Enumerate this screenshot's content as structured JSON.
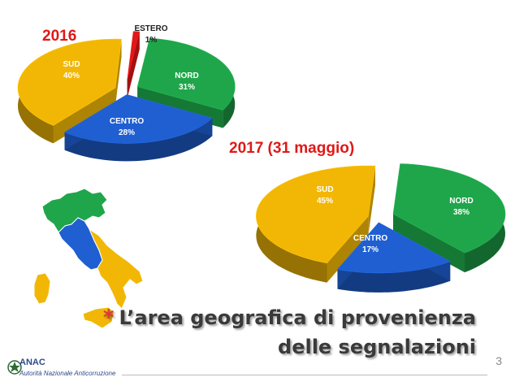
{
  "chart_data": [
    {
      "type": "pie",
      "title": "2016",
      "categories": [
        "SUD",
        "ESTERO",
        "NORD",
        "CENTRO"
      ],
      "values": [
        40,
        1,
        31,
        28
      ],
      "labels": [
        "40%",
        "1%",
        "31%",
        "28%"
      ]
    },
    {
      "type": "pie",
      "title": "2017 (31 maggio)",
      "categories": [
        "SUD",
        "NORD",
        "CENTRO"
      ],
      "values": [
        45,
        38,
        17
      ],
      "labels": [
        "45%",
        "38%",
        "17%"
      ]
    }
  ],
  "colors": {
    "SUD": "#f2b705",
    "NORD": "#1fa64a",
    "CENTRO": "#1f5fd1",
    "ESTERO": "#e01818",
    "year": "#e01818",
    "title_text": "#3a3a3a"
  },
  "slide": {
    "title_line1": "L’area geografica di provenienza",
    "title_line2": "delle segnalazioni",
    "bullet": "*",
    "page_number": "3"
  },
  "logo": {
    "acronym": "ANAC",
    "full_name": "Autorità Nazionale Anticorruzione"
  }
}
